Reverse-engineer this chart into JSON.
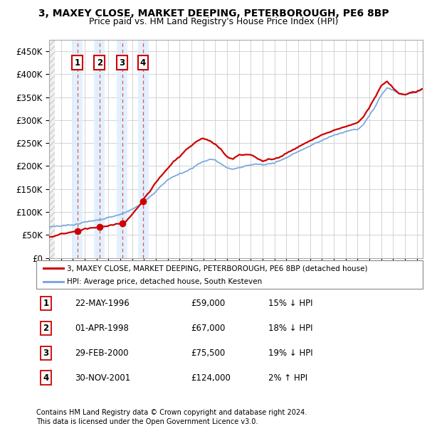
{
  "title1": "3, MAXEY CLOSE, MARKET DEEPING, PETERBOROUGH, PE6 8BP",
  "title2": "Price paid vs. HM Land Registry's House Price Index (HPI)",
  "hpi_color": "#7aaadd",
  "price_color": "#cc0000",
  "sale_color": "#cc0000",
  "purchases": [
    {
      "date_dec": 1996.38,
      "price": 59000,
      "label": "1",
      "pct": "15%",
      "dir": "↓",
      "date_str": "22-MAY-1996"
    },
    {
      "date_dec": 1998.25,
      "price": 67000,
      "label": "2",
      "pct": "18%",
      "dir": "↓",
      "date_str": "01-APR-1998"
    },
    {
      "date_dec": 2000.16,
      "price": 75500,
      "label": "3",
      "pct": "19%",
      "dir": "↓",
      "date_str": "29-FEB-2000"
    },
    {
      "date_dec": 2001.92,
      "price": 124000,
      "label": "4",
      "pct": "2%",
      "dir": "↑",
      "date_str": "30-NOV-2001"
    }
  ],
  "legend_line1": "3, MAXEY CLOSE, MARKET DEEPING, PETERBOROUGH, PE6 8BP (detached house)",
  "legend_line2": "HPI: Average price, detached house, South Kesteven",
  "footer1": "Contains HM Land Registry data © Crown copyright and database right 2024.",
  "footer2": "This data is licensed under the Open Government Licence v3.0.",
  "xmin": 1994,
  "xmax": 2025.5,
  "ymin": 0,
  "ymax": 475000,
  "yticks": [
    0,
    50000,
    100000,
    150000,
    200000,
    250000,
    300000,
    350000,
    400000,
    450000
  ],
  "hpi_anchors_x": [
    1994,
    1994.5,
    1995,
    1995.5,
    1996,
    1996.5,
    1997,
    1997.5,
    1998,
    1998.5,
    1999,
    1999.5,
    2000,
    2000.5,
    2001,
    2001.5,
    2002,
    2002.5,
    2003,
    2003.5,
    2004,
    2004.5,
    2005,
    2005.5,
    2006,
    2006.5,
    2007,
    2007.5,
    2008,
    2008.5,
    2009,
    2009.5,
    2010,
    2010.5,
    2011,
    2011.5,
    2012,
    2012.5,
    2013,
    2013.5,
    2014,
    2014.5,
    2015,
    2015.5,
    2016,
    2016.5,
    2017,
    2017.5,
    2018,
    2018.5,
    2019,
    2019.5,
    2020,
    2020.5,
    2021,
    2021.5,
    2022,
    2022.5,
    2023,
    2023.5,
    2024,
    2024.5,
    2025,
    2025.5
  ],
  "hpi_anchors_y": [
    68000,
    69000,
    70000,
    71500,
    72000,
    74000,
    78000,
    80000,
    82000,
    85000,
    88000,
    91000,
    95000,
    100000,
    106000,
    113000,
    122000,
    133000,
    145000,
    158000,
    170000,
    178000,
    183000,
    188000,
    195000,
    203000,
    210000,
    215000,
    213000,
    205000,
    196000,
    193000,
    197000,
    200000,
    203000,
    205000,
    202000,
    204000,
    207000,
    212000,
    218000,
    225000,
    232000,
    238000,
    244000,
    250000,
    256000,
    262000,
    267000,
    271000,
    275000,
    279000,
    280000,
    290000,
    310000,
    330000,
    355000,
    370000,
    365000,
    358000,
    355000,
    358000,
    362000,
    368000
  ],
  "price_anchors_x": [
    1994,
    1994.5,
    1995,
    1995.5,
    1996,
    1996.38,
    1996.8,
    1997,
    1997.5,
    1998,
    1998.25,
    1998.8,
    1999,
    1999.5,
    2000,
    2000.16,
    2000.5,
    2001,
    2001.5,
    2001.92,
    2002,
    2002.5,
    2003,
    2003.5,
    2004,
    2004.5,
    2005,
    2005.5,
    2006,
    2006.5,
    2007,
    2007.5,
    2008,
    2008.5,
    2009,
    2009.5,
    2010,
    2010.5,
    2011,
    2011.5,
    2012,
    2012.5,
    2013,
    2013.5,
    2014,
    2014.5,
    2015,
    2015.5,
    2016,
    2016.5,
    2017,
    2017.5,
    2018,
    2018.5,
    2019,
    2019.5,
    2020,
    2020.5,
    2021,
    2021.5,
    2022,
    2022.5,
    2023,
    2023.5,
    2024,
    2024.5,
    2025,
    2025.5
  ],
  "price_anchors_y": [
    45000,
    48000,
    52000,
    55000,
    57000,
    59000,
    61000,
    63000,
    65000,
    66500,
    67000,
    69000,
    71000,
    73000,
    75000,
    75500,
    80000,
    95000,
    110000,
    124000,
    130000,
    145000,
    165000,
    180000,
    195000,
    210000,
    220000,
    235000,
    245000,
    255000,
    260000,
    255000,
    248000,
    235000,
    220000,
    215000,
    225000,
    225000,
    225000,
    218000,
    210000,
    215000,
    215000,
    220000,
    228000,
    235000,
    242000,
    248000,
    255000,
    262000,
    268000,
    273000,
    278000,
    282000,
    286000,
    290000,
    295000,
    307000,
    328000,
    350000,
    375000,
    385000,
    370000,
    358000,
    355000,
    360000,
    362000,
    368000
  ]
}
